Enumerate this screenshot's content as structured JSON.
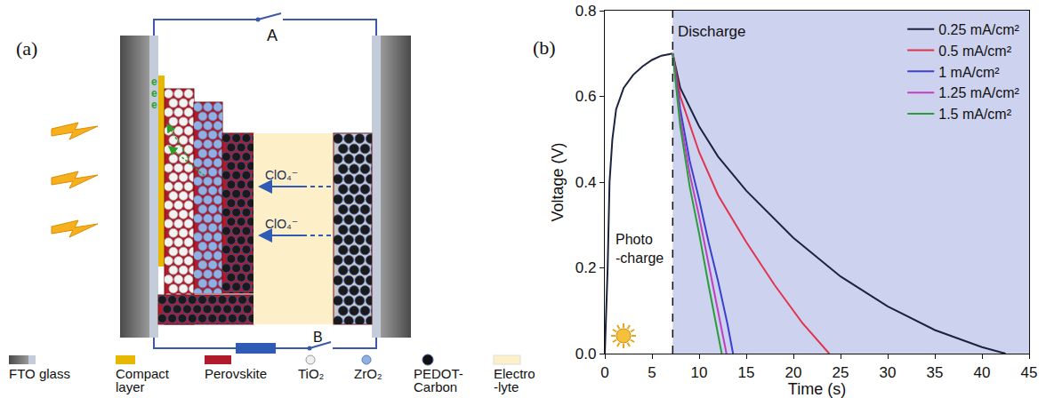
{
  "diagram": {
    "panel_label": "(a)",
    "switches": [
      "A",
      "B"
    ],
    "ion_labels": [
      "ClO₄⁻",
      "ClO₄⁻"
    ],
    "electron_labels": [
      "e",
      "e",
      "e"
    ],
    "legend": [
      {
        "label_lines": [
          "FTO glass"
        ]
      },
      {
        "label_lines": [
          "Compact",
          "layer"
        ]
      },
      {
        "label_lines": [
          "Perovskite"
        ]
      },
      {
        "label_lines": [
          "TiO₂"
        ]
      },
      {
        "label_lines": [
          "ZrO₂"
        ]
      },
      {
        "label_lines": [
          "PEDOT-",
          "Carbon"
        ]
      },
      {
        "label_lines": [
          "Electro",
          "-lyte"
        ]
      }
    ]
  },
  "chart_data": {
    "panel_label": "(b)",
    "type": "line",
    "x_label": "Time (s)",
    "y_label": "Voltage (V)",
    "xlim": [
      0,
      45
    ],
    "ylim": [
      0,
      0.8
    ],
    "xticks": [
      0,
      5,
      10,
      15,
      20,
      25,
      30,
      35,
      40,
      45
    ],
    "yticks": [
      {
        "value": 0,
        "label": "0.0"
      },
      0.2,
      0.4,
      0.6,
      0.8
    ],
    "grid": false,
    "legend": "upper right",
    "annotations": [
      {
        "text": "Discharge"
      },
      {
        "text_lines": [
          "Photo",
          "-charge"
        ]
      }
    ],
    "discharge_start": 7.2,
    "photo_charge": {
      "color": "#1c2340",
      "x": [
        0,
        0.3,
        0.5,
        0.8,
        1.2,
        2,
        3,
        4,
        5,
        6,
        7.2
      ],
      "values": [
        0,
        0.2,
        0.4,
        0.5,
        0.57,
        0.62,
        0.65,
        0.67,
        0.685,
        0.695,
        0.7
      ]
    },
    "series": [
      {
        "name": "0.25 mA/cm²",
        "color": "#1c2340",
        "x": [
          7.2,
          8,
          10,
          12,
          15,
          20,
          25,
          30,
          35,
          40,
          42.5
        ],
        "values": [
          0.7,
          0.62,
          0.53,
          0.46,
          0.38,
          0.27,
          0.18,
          0.11,
          0.055,
          0.015,
          0
        ]
      },
      {
        "name": "0.5 mA/cm²",
        "color": "#e0344e",
        "x": [
          7.2,
          8,
          10,
          12,
          15,
          18,
          21,
          23.8
        ],
        "values": [
          0.7,
          0.6,
          0.47,
          0.37,
          0.26,
          0.16,
          0.07,
          0
        ]
      },
      {
        "name": "1 mA/cm²",
        "color": "#3b3fd1",
        "x": [
          7.2,
          8,
          9,
          10,
          11,
          12,
          13,
          13.6
        ],
        "values": [
          0.7,
          0.57,
          0.45,
          0.36,
          0.26,
          0.17,
          0.07,
          0
        ]
      },
      {
        "name": "1.25 mA/cm²",
        "color": "#c040c0",
        "x": [
          7.2,
          8,
          9,
          10,
          11,
          12,
          12.9
        ],
        "values": [
          0.7,
          0.55,
          0.42,
          0.32,
          0.21,
          0.1,
          0
        ]
      },
      {
        "name": "1.5 mA/cm²",
        "color": "#2a9d3a",
        "x": [
          7.2,
          8,
          9,
          10,
          11,
          12,
          12.4
        ],
        "values": [
          0.7,
          0.53,
          0.39,
          0.28,
          0.16,
          0.05,
          0
        ]
      }
    ]
  }
}
